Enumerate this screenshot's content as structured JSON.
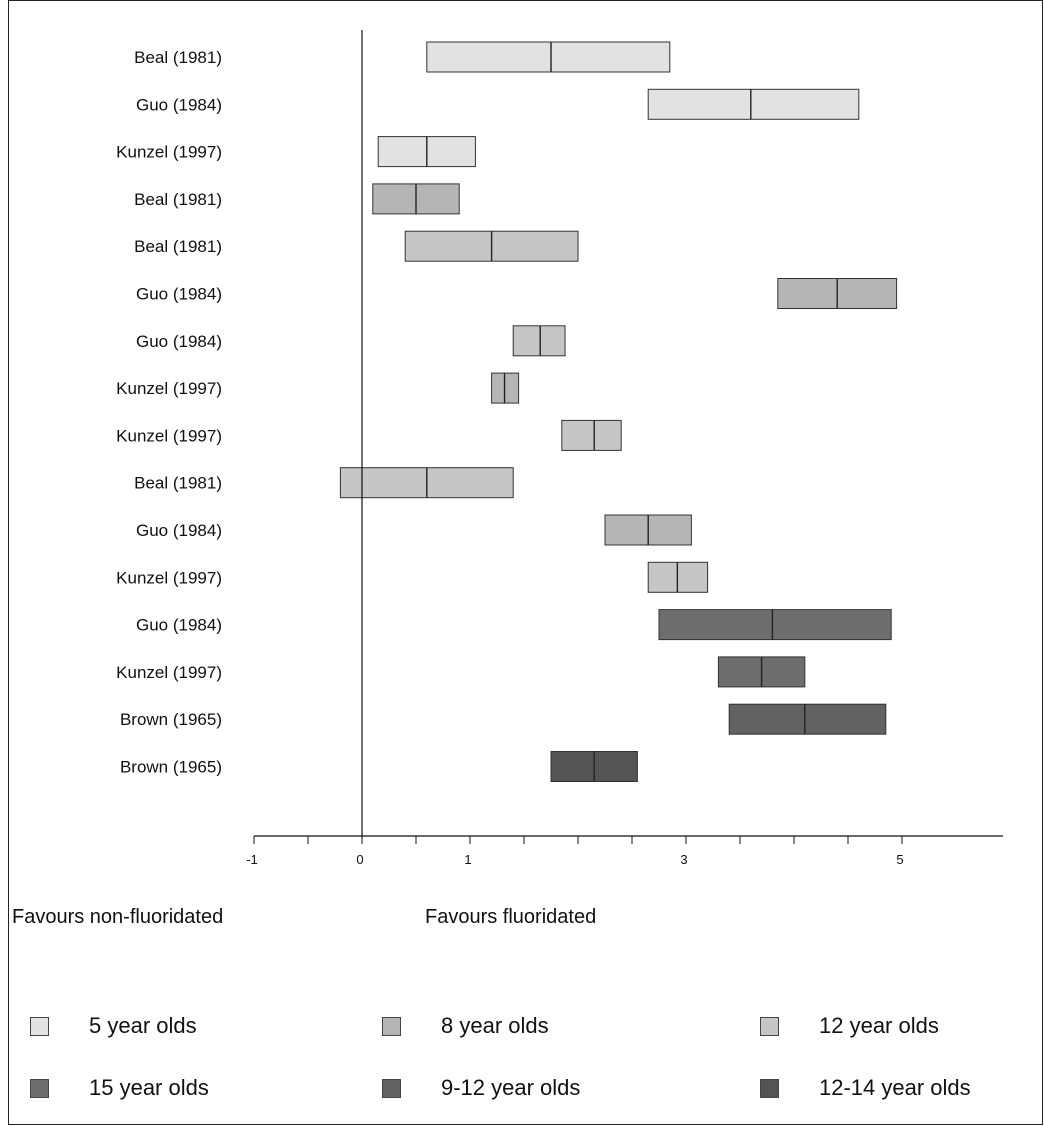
{
  "chart_data": {
    "type": "forest",
    "categories": [
      "Beal (1981)",
      "Guo (1984)",
      "Kunzel (1997)",
      "Beal (1981)",
      "Beal (1981)",
      "Guo (1984)",
      "Guo (1984)",
      "Kunzel (1997)",
      "Kunzel (1997)",
      "Beal (1981)",
      "Guo (1984)",
      "Kunzel (1997)",
      "Guo (1984)",
      "Kunzel (1997)",
      "Brown (1965)",
      "Brown (1965)"
    ],
    "intervals": [
      {
        "low": 0.6,
        "mid": 1.75,
        "high": 2.85,
        "group": 0
      },
      {
        "low": 2.65,
        "mid": 3.6,
        "high": 4.6,
        "group": 0
      },
      {
        "low": 0.15,
        "mid": 0.6,
        "high": 1.05,
        "group": 0
      },
      {
        "low": 0.1,
        "mid": 0.5,
        "high": 0.9,
        "group": 1
      },
      {
        "low": 0.4,
        "mid": 1.2,
        "high": 2.0,
        "group": 2
      },
      {
        "low": 3.85,
        "mid": 4.4,
        "high": 4.95,
        "group": 1
      },
      {
        "low": 1.4,
        "mid": 1.65,
        "high": 1.88,
        "group": 2
      },
      {
        "low": 1.2,
        "mid": 1.32,
        "high": 1.45,
        "group": 1
      },
      {
        "low": 1.85,
        "mid": 2.15,
        "high": 2.4,
        "group": 2
      },
      {
        "low": -0.2,
        "mid": 0.6,
        "high": 1.4,
        "group": 2
      },
      {
        "low": 2.25,
        "mid": 2.65,
        "high": 3.05,
        "group": 1
      },
      {
        "low": 2.65,
        "mid": 2.92,
        "high": 3.2,
        "group": 2
      },
      {
        "low": 2.75,
        "mid": 3.8,
        "high": 4.9,
        "group": 3
      },
      {
        "low": 3.3,
        "mid": 3.7,
        "high": 4.1,
        "group": 3
      },
      {
        "low": 3.4,
        "mid": 4.1,
        "high": 4.85,
        "group": 4
      },
      {
        "low": 1.75,
        "mid": 2.15,
        "high": 2.55,
        "group": 5
      }
    ],
    "xlim": [
      -1,
      6
    ],
    "x_tick_labels": [
      {
        "value": -1,
        "label": "-1"
      },
      {
        "value": 0,
        "label": "0"
      },
      {
        "value": 1,
        "label": "1"
      },
      {
        "value": 3,
        "label": "3"
      },
      {
        "value": 5,
        "label": "5"
      }
    ],
    "x_minor_step": 0.5,
    "reference_line": 0,
    "left_note": "Favours non-fluoridated",
    "right_note": "Favours fluoridated",
    "legend": [
      {
        "label": "5 year olds",
        "color": "#e2e2e2"
      },
      {
        "label": "8 year olds",
        "color": "#b5b5b5"
      },
      {
        "label": "12 year olds",
        "color": "#c6c6c6"
      },
      {
        "label": "15 year olds",
        "color": "#6e6e6e"
      },
      {
        "label": "9-12 year olds",
        "color": "#626262"
      },
      {
        "label": "12-14 year olds",
        "color": "#545454"
      }
    ],
    "legend_placement": "bottom",
    "grid": false
  }
}
